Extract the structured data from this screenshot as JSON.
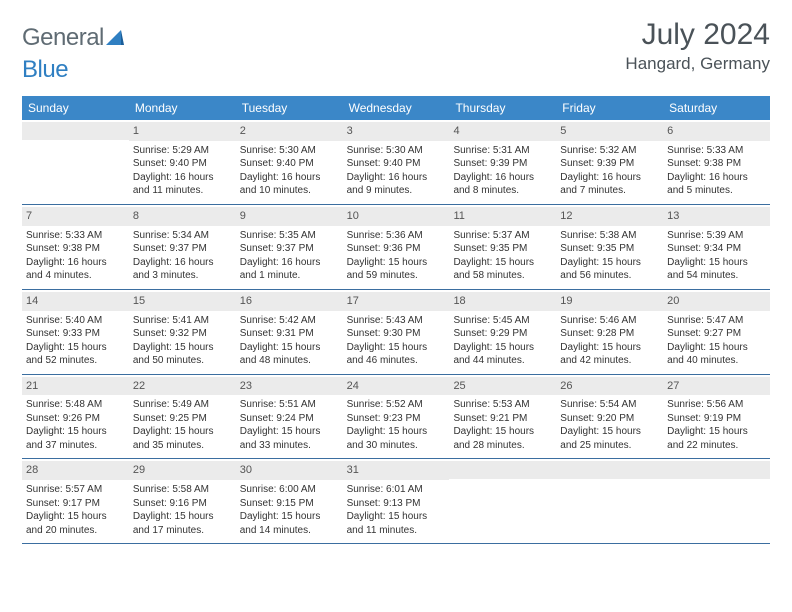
{
  "brand": {
    "part1": "General",
    "part2": "Blue"
  },
  "title": "July 2024",
  "subtitle": "Hangard, Germany",
  "colors": {
    "header_bg": "#3b87c8",
    "header_text": "#ffffff",
    "daynum_bg": "#ebebeb",
    "week_divider": "#3b6ea0",
    "brand_gray": "#5f6b73",
    "brand_blue": "#2f7fc2",
    "title_color": "#4a5258"
  },
  "typography": {
    "title_fontsize": 30,
    "subtitle_fontsize": 17,
    "dayhead_fontsize": 12,
    "cell_fontsize": 10
  },
  "day_headers": [
    "Sunday",
    "Monday",
    "Tuesday",
    "Wednesday",
    "Thursday",
    "Friday",
    "Saturday"
  ],
  "weeks": [
    [
      {
        "daynum": "",
        "sunrise": "",
        "sunset": "",
        "daylight": ""
      },
      {
        "daynum": "1",
        "sunrise": "Sunrise: 5:29 AM",
        "sunset": "Sunset: 9:40 PM",
        "daylight": "Daylight: 16 hours and 11 minutes."
      },
      {
        "daynum": "2",
        "sunrise": "Sunrise: 5:30 AM",
        "sunset": "Sunset: 9:40 PM",
        "daylight": "Daylight: 16 hours and 10 minutes."
      },
      {
        "daynum": "3",
        "sunrise": "Sunrise: 5:30 AM",
        "sunset": "Sunset: 9:40 PM",
        "daylight": "Daylight: 16 hours and 9 minutes."
      },
      {
        "daynum": "4",
        "sunrise": "Sunrise: 5:31 AM",
        "sunset": "Sunset: 9:39 PM",
        "daylight": "Daylight: 16 hours and 8 minutes."
      },
      {
        "daynum": "5",
        "sunrise": "Sunrise: 5:32 AM",
        "sunset": "Sunset: 9:39 PM",
        "daylight": "Daylight: 16 hours and 7 minutes."
      },
      {
        "daynum": "6",
        "sunrise": "Sunrise: 5:33 AM",
        "sunset": "Sunset: 9:38 PM",
        "daylight": "Daylight: 16 hours and 5 minutes."
      }
    ],
    [
      {
        "daynum": "7",
        "sunrise": "Sunrise: 5:33 AM",
        "sunset": "Sunset: 9:38 PM",
        "daylight": "Daylight: 16 hours and 4 minutes."
      },
      {
        "daynum": "8",
        "sunrise": "Sunrise: 5:34 AM",
        "sunset": "Sunset: 9:37 PM",
        "daylight": "Daylight: 16 hours and 3 minutes."
      },
      {
        "daynum": "9",
        "sunrise": "Sunrise: 5:35 AM",
        "sunset": "Sunset: 9:37 PM",
        "daylight": "Daylight: 16 hours and 1 minute."
      },
      {
        "daynum": "10",
        "sunrise": "Sunrise: 5:36 AM",
        "sunset": "Sunset: 9:36 PM",
        "daylight": "Daylight: 15 hours and 59 minutes."
      },
      {
        "daynum": "11",
        "sunrise": "Sunrise: 5:37 AM",
        "sunset": "Sunset: 9:35 PM",
        "daylight": "Daylight: 15 hours and 58 minutes."
      },
      {
        "daynum": "12",
        "sunrise": "Sunrise: 5:38 AM",
        "sunset": "Sunset: 9:35 PM",
        "daylight": "Daylight: 15 hours and 56 minutes."
      },
      {
        "daynum": "13",
        "sunrise": "Sunrise: 5:39 AM",
        "sunset": "Sunset: 9:34 PM",
        "daylight": "Daylight: 15 hours and 54 minutes."
      }
    ],
    [
      {
        "daynum": "14",
        "sunrise": "Sunrise: 5:40 AM",
        "sunset": "Sunset: 9:33 PM",
        "daylight": "Daylight: 15 hours and 52 minutes."
      },
      {
        "daynum": "15",
        "sunrise": "Sunrise: 5:41 AM",
        "sunset": "Sunset: 9:32 PM",
        "daylight": "Daylight: 15 hours and 50 minutes."
      },
      {
        "daynum": "16",
        "sunrise": "Sunrise: 5:42 AM",
        "sunset": "Sunset: 9:31 PM",
        "daylight": "Daylight: 15 hours and 48 minutes."
      },
      {
        "daynum": "17",
        "sunrise": "Sunrise: 5:43 AM",
        "sunset": "Sunset: 9:30 PM",
        "daylight": "Daylight: 15 hours and 46 minutes."
      },
      {
        "daynum": "18",
        "sunrise": "Sunrise: 5:45 AM",
        "sunset": "Sunset: 9:29 PM",
        "daylight": "Daylight: 15 hours and 44 minutes."
      },
      {
        "daynum": "19",
        "sunrise": "Sunrise: 5:46 AM",
        "sunset": "Sunset: 9:28 PM",
        "daylight": "Daylight: 15 hours and 42 minutes."
      },
      {
        "daynum": "20",
        "sunrise": "Sunrise: 5:47 AM",
        "sunset": "Sunset: 9:27 PM",
        "daylight": "Daylight: 15 hours and 40 minutes."
      }
    ],
    [
      {
        "daynum": "21",
        "sunrise": "Sunrise: 5:48 AM",
        "sunset": "Sunset: 9:26 PM",
        "daylight": "Daylight: 15 hours and 37 minutes."
      },
      {
        "daynum": "22",
        "sunrise": "Sunrise: 5:49 AM",
        "sunset": "Sunset: 9:25 PM",
        "daylight": "Daylight: 15 hours and 35 minutes."
      },
      {
        "daynum": "23",
        "sunrise": "Sunrise: 5:51 AM",
        "sunset": "Sunset: 9:24 PM",
        "daylight": "Daylight: 15 hours and 33 minutes."
      },
      {
        "daynum": "24",
        "sunrise": "Sunrise: 5:52 AM",
        "sunset": "Sunset: 9:23 PM",
        "daylight": "Daylight: 15 hours and 30 minutes."
      },
      {
        "daynum": "25",
        "sunrise": "Sunrise: 5:53 AM",
        "sunset": "Sunset: 9:21 PM",
        "daylight": "Daylight: 15 hours and 28 minutes."
      },
      {
        "daynum": "26",
        "sunrise": "Sunrise: 5:54 AM",
        "sunset": "Sunset: 9:20 PM",
        "daylight": "Daylight: 15 hours and 25 minutes."
      },
      {
        "daynum": "27",
        "sunrise": "Sunrise: 5:56 AM",
        "sunset": "Sunset: 9:19 PM",
        "daylight": "Daylight: 15 hours and 22 minutes."
      }
    ],
    [
      {
        "daynum": "28",
        "sunrise": "Sunrise: 5:57 AM",
        "sunset": "Sunset: 9:17 PM",
        "daylight": "Daylight: 15 hours and 20 minutes."
      },
      {
        "daynum": "29",
        "sunrise": "Sunrise: 5:58 AM",
        "sunset": "Sunset: 9:16 PM",
        "daylight": "Daylight: 15 hours and 17 minutes."
      },
      {
        "daynum": "30",
        "sunrise": "Sunrise: 6:00 AM",
        "sunset": "Sunset: 9:15 PM",
        "daylight": "Daylight: 15 hours and 14 minutes."
      },
      {
        "daynum": "31",
        "sunrise": "Sunrise: 6:01 AM",
        "sunset": "Sunset: 9:13 PM",
        "daylight": "Daylight: 15 hours and 11 minutes."
      },
      {
        "daynum": "",
        "sunrise": "",
        "sunset": "",
        "daylight": ""
      },
      {
        "daynum": "",
        "sunrise": "",
        "sunset": "",
        "daylight": ""
      },
      {
        "daynum": "",
        "sunrise": "",
        "sunset": "",
        "daylight": ""
      }
    ]
  ]
}
